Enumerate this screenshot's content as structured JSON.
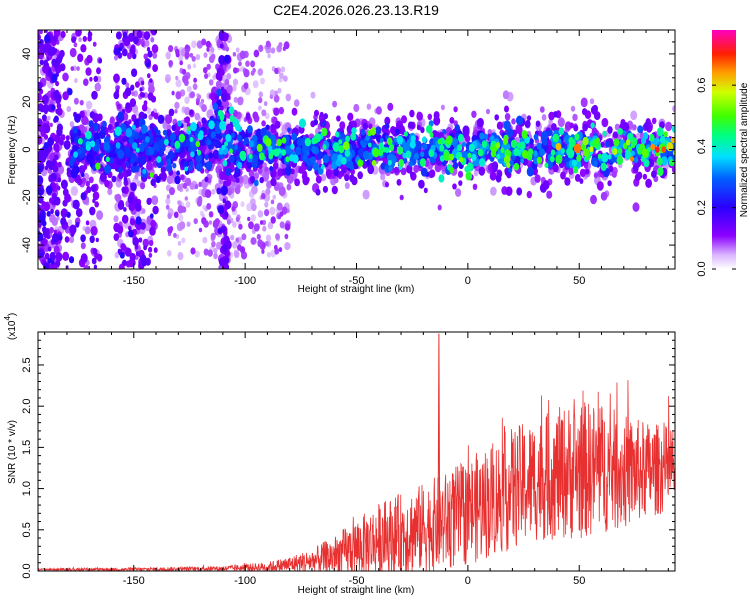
{
  "figure_title": "C2E4.2026.026.23.13.R19",
  "chart_data": [
    {
      "type": "heatmap",
      "title": "C2E4.2026.026.23.13.R19",
      "xlabel": "Height of straight line (km)",
      "ylabel": "Frequency (Hz)",
      "xlim": [
        -193,
        93
      ],
      "ylim": [
        -50,
        50
      ],
      "xticks": [
        -150,
        -100,
        -50,
        0,
        50
      ],
      "xtick_labels": [
        "-150",
        "-100",
        "-50",
        "0",
        "50"
      ],
      "yticks": [
        -40,
        -20,
        0,
        20,
        40
      ],
      "ytick_labels": [
        "-40",
        "-20",
        "0",
        "20",
        "40"
      ],
      "colorbar": {
        "label": "Normalized spectral amplitude",
        "range": [
          0,
          0.78
        ],
        "ticks": [
          0.0,
          0.2,
          0.4,
          0.6
        ],
        "tick_labels": [
          "0.0",
          "0.2",
          "0.4",
          "0.6"
        ],
        "colormap": "rainbow (white-violet-blue-cyan-green-yellow-red-magenta)"
      },
      "description_of_data": "Signal band centred near 0 Hz (about ±8 Hz wide) from -175 km to 90 km; broadband scatter left of -100 km; bump to ~+18 Hz near -113 km; amplitude increases toward the right end (max ~0.75 near 85 km)"
    },
    {
      "type": "line",
      "title": "",
      "xlabel": "Height of straight line (km)",
      "ylabel": "SNR (10 * v/v)",
      "y_multiplier_label": "(x10",
      "y_multiplier_exponent": "4",
      "y_multiplier_close": ")",
      "xlim": [
        -193,
        93
      ],
      "ylim": [
        0,
        2.9
      ],
      "xticks": [
        -150,
        -100,
        -50,
        0,
        50
      ],
      "xtick_labels": [
        "-150",
        "-100",
        "-50",
        "0",
        "50"
      ],
      "yticks": [
        0.0,
        0.5,
        1.0,
        1.5,
        2.0,
        2.5
      ],
      "ytick_labels": [
        "0.0",
        "0.5",
        "1.0",
        "1.5",
        "2.0",
        "2.5"
      ],
      "series": [
        {
          "name": "SNR",
          "color": "#e83030",
          "envelope_x": [
            -193,
            -150,
            -110,
            -90,
            -80,
            -70,
            -60,
            -50,
            -40,
            -30,
            -20,
            -10,
            0,
            10,
            20,
            30,
            40,
            50,
            60,
            70,
            80,
            93
          ],
          "envelope_mean": [
            0.02,
            0.02,
            0.03,
            0.05,
            0.08,
            0.12,
            0.18,
            0.28,
            0.38,
            0.45,
            0.52,
            0.6,
            0.72,
            0.85,
            1.0,
            1.1,
            1.18,
            1.22,
            1.25,
            1.2,
            1.22,
            1.25
          ],
          "envelope_amplitude": [
            0.01,
            0.02,
            0.03,
            0.06,
            0.1,
            0.15,
            0.25,
            0.35,
            0.45,
            0.5,
            0.55,
            0.6,
            0.65,
            0.7,
            0.75,
            0.75,
            0.8,
            0.85,
            0.8,
            0.7,
            0.6,
            0.5
          ]
        }
      ],
      "spike": {
        "x": -13,
        "y": 2.88
      },
      "approx_peak_values": [
        {
          "x": 50,
          "y": 2.62
        },
        {
          "x": 45,
          "y": 2.5
        },
        {
          "x": 28,
          "y": 1.9
        }
      ]
    }
  ]
}
